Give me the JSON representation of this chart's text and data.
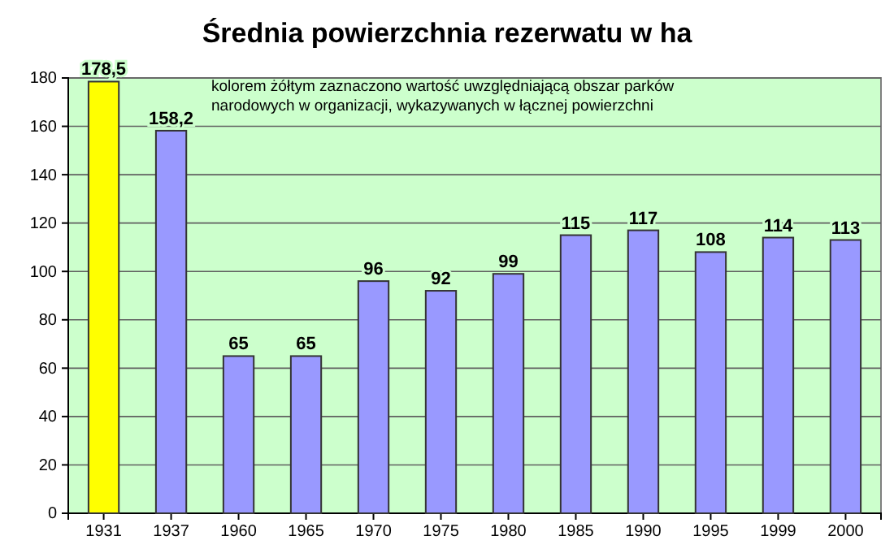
{
  "chart_data": {
    "type": "bar",
    "title": "Średnia powierzchnia rezerwatu w ha",
    "categories": [
      "1931",
      "1937",
      "1960",
      "1965",
      "1970",
      "1975",
      "1980",
      "1985",
      "1990",
      "1995",
      "1999",
      "2000"
    ],
    "values": [
      178.5,
      158.2,
      65,
      65,
      96,
      92,
      99,
      115,
      117,
      108,
      114,
      113
    ],
    "colors": [
      "#ffff00",
      "#9999ff",
      "#9999ff",
      "#9999ff",
      "#9999ff",
      "#9999ff",
      "#9999ff",
      "#9999ff",
      "#9999ff",
      "#9999ff",
      "#9999ff",
      "#9999ff"
    ],
    "value_labels": [
      "178,5",
      "158,2",
      "65",
      "65",
      "96",
      "92",
      "99",
      "115",
      "117",
      "108",
      "114",
      "113"
    ],
    "ylim": [
      0,
      180
    ],
    "yticks": [
      0,
      20,
      40,
      60,
      80,
      100,
      120,
      140,
      160,
      180
    ],
    "grid": "y",
    "annotations": [
      "kolorem żółtym zaznaczono wartość uwzględniającą obszar parków narodowych w organizacji, wykazywanych w łącznej powierzchni"
    ]
  }
}
